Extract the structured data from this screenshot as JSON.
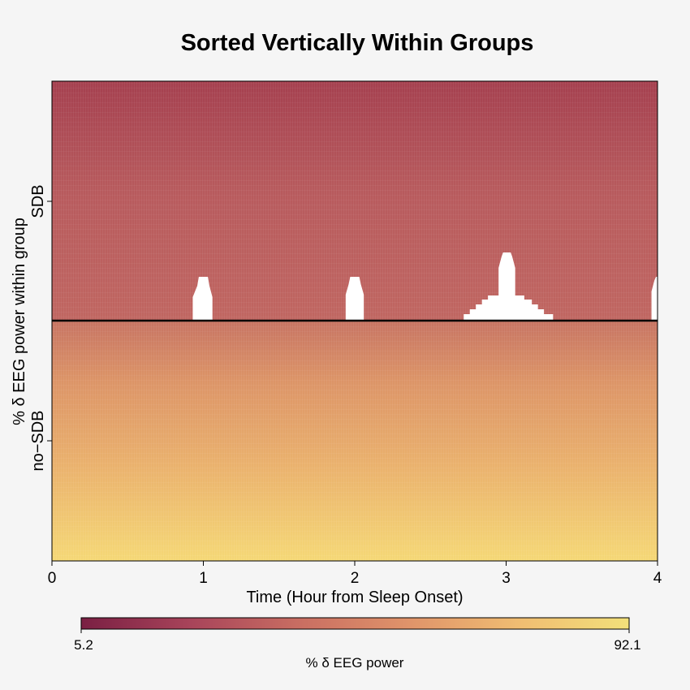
{
  "chart_data": {
    "type": "heatmap",
    "title": "Sorted Vertically Within Groups",
    "xlabel": "Time (Hour from Sleep Onset)",
    "ylabel": "% δ  EEG power within group",
    "xlim": [
      0,
      4
    ],
    "x_ticks": [
      "0",
      "1",
      "2",
      "3",
      "4"
    ],
    "groups": [
      {
        "label": "SDB",
        "position": "top"
      },
      {
        "label": "no−SDB",
        "position": "bottom"
      }
    ],
    "colorbar": {
      "label": "% δ EEG power",
      "min": 5.2,
      "max": 92.1,
      "min_label": "5.2",
      "max_label": "92.1",
      "colors": [
        "#7a1f43",
        "#a8445a",
        "#c96e62",
        "#e0946a",
        "#f0bd72",
        "#f2e07a"
      ]
    },
    "missing_data_hours": [
      {
        "start": 0.93,
        "end": 1.06
      },
      {
        "start": 1.94,
        "end": 2.06
      },
      {
        "start": 2.72,
        "end": 3.31
      },
      {
        "start": 3.96,
        "end": 4.0
      }
    ],
    "group_divider_color": "#000000"
  }
}
